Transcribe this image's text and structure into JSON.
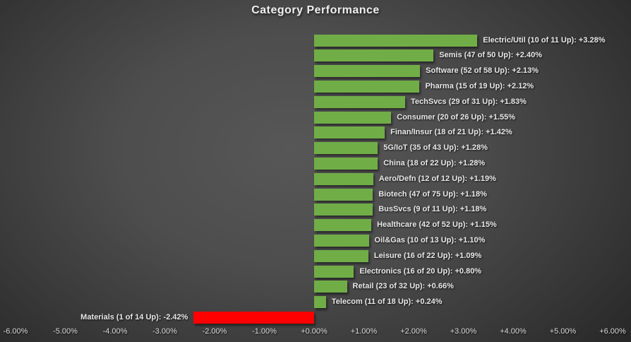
{
  "title": "Category Performance",
  "chart_data": {
    "type": "bar",
    "orientation": "horizontal",
    "title": "Category Performance",
    "xlabel": "",
    "ylabel": "",
    "xlim": [
      -6,
      6
    ],
    "grid": false,
    "legend": false,
    "bar_color_positive": "#70AD47",
    "bar_color_negative": "#FF0000",
    "label_color": "#E8E8E8",
    "axis_label_color": "#D8D8D8",
    "items": [
      {
        "name": "Electric/Util",
        "up": 10,
        "total": 11,
        "value": 3.28,
        "label": "Electric/Util (10 of 11 Up): +3.28%"
      },
      {
        "name": "Semis",
        "up": 47,
        "total": 50,
        "value": 2.4,
        "label": "Semis (47 of 50 Up): +2.40%"
      },
      {
        "name": "Software",
        "up": 52,
        "total": 58,
        "value": 2.13,
        "label": "Software (52 of 58 Up): +2.13%"
      },
      {
        "name": "Pharma",
        "up": 15,
        "total": 19,
        "value": 2.12,
        "label": "Pharma (15 of 19 Up): +2.12%"
      },
      {
        "name": "TechSvcs",
        "up": 29,
        "total": 31,
        "value": 1.83,
        "label": "TechSvcs (29 of 31 Up): +1.83%"
      },
      {
        "name": "Consumer",
        "up": 20,
        "total": 26,
        "value": 1.55,
        "label": "Consumer (20 of 26 Up): +1.55%"
      },
      {
        "name": "Finan/Insur",
        "up": 18,
        "total": 21,
        "value": 1.42,
        "label": "Finan/Insur (18 of 21 Up): +1.42%"
      },
      {
        "name": "5G/IoT",
        "up": 35,
        "total": 43,
        "value": 1.28,
        "label": "5G/IoT (35 of 43 Up): +1.28%"
      },
      {
        "name": "China",
        "up": 18,
        "total": 22,
        "value": 1.28,
        "label": "China (18 of 22 Up): +1.28%"
      },
      {
        "name": "Aero/Defn",
        "up": 12,
        "total": 12,
        "value": 1.19,
        "label": "Aero/Defn (12 of 12 Up): +1.19%"
      },
      {
        "name": "Biotech",
        "up": 47,
        "total": 75,
        "value": 1.18,
        "label": "Biotech (47 of 75 Up): +1.18%"
      },
      {
        "name": "BusSvcs",
        "up": 9,
        "total": 11,
        "value": 1.18,
        "label": "BusSvcs (9 of 11 Up): +1.18%"
      },
      {
        "name": "Healthcare",
        "up": 42,
        "total": 52,
        "value": 1.15,
        "label": "Healthcare (42 of 52 Up): +1.15%"
      },
      {
        "name": "Oil&Gas",
        "up": 10,
        "total": 13,
        "value": 1.1,
        "label": "Oil&Gas (10 of 13 Up): +1.10%"
      },
      {
        "name": "Leisure",
        "up": 16,
        "total": 22,
        "value": 1.09,
        "label": "Leisure (16 of 22 Up): +1.09%"
      },
      {
        "name": "Electronics",
        "up": 16,
        "total": 20,
        "value": 0.8,
        "label": "Electronics (16 of 20 Up): +0.80%"
      },
      {
        "name": "Retail",
        "up": 23,
        "total": 32,
        "value": 0.66,
        "label": "Retail (23 of 32 Up): +0.66%"
      },
      {
        "name": "Telecom",
        "up": 11,
        "total": 18,
        "value": 0.24,
        "label": "Telecom (11 of 18 Up): +0.24%"
      },
      {
        "name": "Materials",
        "up": 1,
        "total": 14,
        "value": -2.42,
        "label": "Materials (1 of 14 Up): -2.42%"
      }
    ],
    "x_ticks": [
      {
        "value": -6,
        "label": "-6.00%"
      },
      {
        "value": -5,
        "label": "-5.00%"
      },
      {
        "value": -4,
        "label": "-4.00%"
      },
      {
        "value": -3,
        "label": "-3.00%"
      },
      {
        "value": -2,
        "label": "-2.00%"
      },
      {
        "value": -1,
        "label": "-1.00%"
      },
      {
        "value": 0,
        "label": "+0.00%"
      },
      {
        "value": 1,
        "label": "+1.00%"
      },
      {
        "value": 2,
        "label": "+2.00%"
      },
      {
        "value": 3,
        "label": "+3.00%"
      },
      {
        "value": 4,
        "label": "+4.00%"
      },
      {
        "value": 5,
        "label": "+5.00%"
      },
      {
        "value": 6,
        "label": "+6.00%"
      }
    ]
  }
}
